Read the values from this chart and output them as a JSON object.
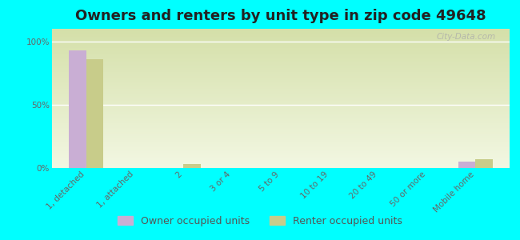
{
  "title": "Owners and renters by unit type in zip code 49648",
  "categories": [
    "1, detached",
    "1, attached",
    "2",
    "3 or 4",
    "5 to 9",
    "10 to 19",
    "20 to 49",
    "50 or more",
    "Mobile home"
  ],
  "owner_values": [
    93,
    0,
    0,
    0,
    0,
    0,
    0,
    0,
    5
  ],
  "renter_values": [
    86,
    0,
    3,
    0,
    0,
    0,
    0,
    0,
    7
  ],
  "owner_color": "#c9aed4",
  "renter_color": "#c8cc8a",
  "background_color": "#00ffff",
  "grad_top_color": "#d4dfa8",
  "grad_bottom_color": "#f2f7e2",
  "ylabel_ticks": [
    "0%",
    "50%",
    "100%"
  ],
  "yticks": [
    0,
    50,
    100
  ],
  "ylim": [
    0,
    110
  ],
  "bar_width": 0.35,
  "title_fontsize": 13,
  "tick_fontsize": 7.5,
  "legend_fontsize": 9,
  "watermark": "City-Data.com"
}
